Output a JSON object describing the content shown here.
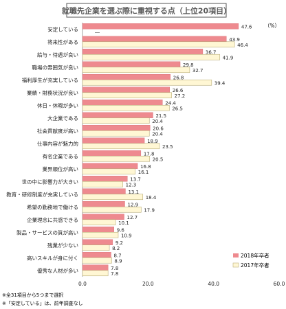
{
  "colors": {
    "series_2018": "#ee8a8f",
    "series_2018_stroke": "#d86a70",
    "series_2017": "#fff7d4",
    "series_2017_stroke": "#b9ad7a",
    "title_border": "#555555",
    "title_text": "#5a5a5a",
    "axis": "#888888",
    "text": "#222222"
  },
  "chart_data": {
    "type": "bar",
    "orientation": "horizontal",
    "title": "就職先企業を選ぶ際に重視する点（上位20項目）",
    "unit_label": "（%）",
    "xlim": [
      0,
      60
    ],
    "xticks": [
      "0.0",
      "20.0",
      "40.0",
      "60.0"
    ],
    "grid": false,
    "legend_position": "bottom-right",
    "categories": [
      "安定している",
      "将来性がある",
      "給与・待遇が良い",
      "職場の雰囲気が良い",
      "福利厚生が充実している",
      "業績・財務状況が良い",
      "休日・休暇が多い",
      "大企業である",
      "社会貢献度が高い",
      "仕事内容が魅力的",
      "有名企業である",
      "業界順位が高い",
      "世の中に影響力が大きい",
      "教育・研修制度が充実している",
      "希望の勤務地で働ける",
      "企業理念に共感できる",
      "製品・サービスの質が高い",
      "残業が少ない",
      "高いスキルが身に付く",
      "優秀な人材が多い"
    ],
    "series": [
      {
        "name": "2018年卒者",
        "values": [
          47.6,
          43.9,
          36.7,
          29.8,
          26.8,
          26.6,
          24.4,
          21.5,
          20.6,
          18.9,
          17.8,
          16.8,
          13.7,
          13.1,
          12.9,
          12.7,
          9.6,
          9.2,
          8.7,
          7.8
        ]
      },
      {
        "name": "2017年卒者",
        "values": [
          null,
          46.4,
          41.9,
          32.7,
          39.4,
          27.2,
          26.5,
          20.4,
          20.4,
          23.5,
          20.5,
          16.1,
          12.3,
          18.4,
          17.9,
          10.1,
          10.9,
          8.2,
          8.9,
          7.8
        ]
      }
    ],
    "value_labels_2017": [
      "―",
      "46.4",
      "41.9",
      "32.7",
      "39.4",
      "27.2",
      "26.5",
      "20.4",
      "20.4",
      "23.5",
      "20.5",
      "16.1",
      "12.3",
      "18.4",
      "17.9",
      "10.1",
      "10.9",
      "8.2",
      "8.9",
      "7.8"
    ]
  },
  "footnotes": [
    "※全31項目から5つまで選択",
    "※「安定している」は、前年調査なし"
  ]
}
